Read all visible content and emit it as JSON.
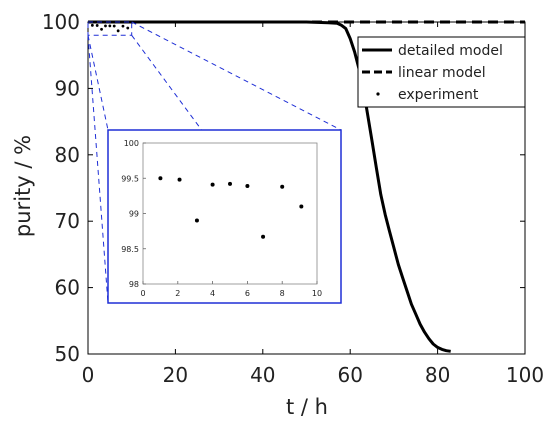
{
  "chart_data": {
    "type": "line",
    "xlabel": "t / h",
    "ylabel": "purity / %",
    "xlim": [
      0,
      100
    ],
    "ylim": [
      50,
      100
    ],
    "xticks": [
      0,
      20,
      40,
      60,
      80,
      100
    ],
    "yticks": [
      50,
      60,
      70,
      80,
      90,
      100
    ],
    "grid": false,
    "legend_position": "top-right",
    "series": [
      {
        "name": "detailed model",
        "style": "solid",
        "color": "#000000",
        "x": [
          0,
          20,
          40,
          50,
          55,
          57,
          58,
          59,
          60,
          61,
          62,
          63,
          64,
          65,
          66,
          67,
          68,
          69,
          70,
          71,
          72,
          73,
          74,
          75,
          76,
          77,
          78,
          79,
          80,
          81,
          82,
          83
        ],
        "y": [
          100,
          100,
          100,
          100,
          99.9,
          99.8,
          99.5,
          99,
          97.5,
          95.5,
          93,
          90,
          86,
          82,
          78,
          74,
          71,
          68.5,
          66,
          63.5,
          61.5,
          59.5,
          57.5,
          56,
          54.5,
          53.3,
          52.3,
          51.5,
          51,
          50.7,
          50.5,
          50.4
        ]
      },
      {
        "name": "linear model",
        "style": "dashed",
        "color": "#000000",
        "x": [
          0,
          100
        ],
        "y": [
          100,
          100
        ]
      },
      {
        "name": "experiment",
        "style": "points",
        "color": "#000000",
        "x": [
          1,
          2.1,
          3.1,
          4,
          5,
          6,
          6.9,
          8,
          9.1
        ],
        "y": [
          99.5,
          99.48,
          98.9,
          99.41,
          99.42,
          99.39,
          98.67,
          99.38,
          99.1
        ]
      }
    ],
    "inset": {
      "xlim": [
        0,
        10
      ],
      "ylim": [
        98,
        100
      ],
      "xticks": [
        0,
        2,
        4,
        6,
        8,
        10
      ],
      "yticks": [
        98,
        98.5,
        99,
        99.5,
        100
      ],
      "ytick_labels": [
        "98",
        "98.5",
        "99",
        "99.5",
        "100"
      ],
      "series": "experiment",
      "frame_color": "#1f2fd6",
      "zoom_region": {
        "x": [
          0,
          10
        ],
        "y": [
          98,
          100
        ]
      }
    }
  }
}
